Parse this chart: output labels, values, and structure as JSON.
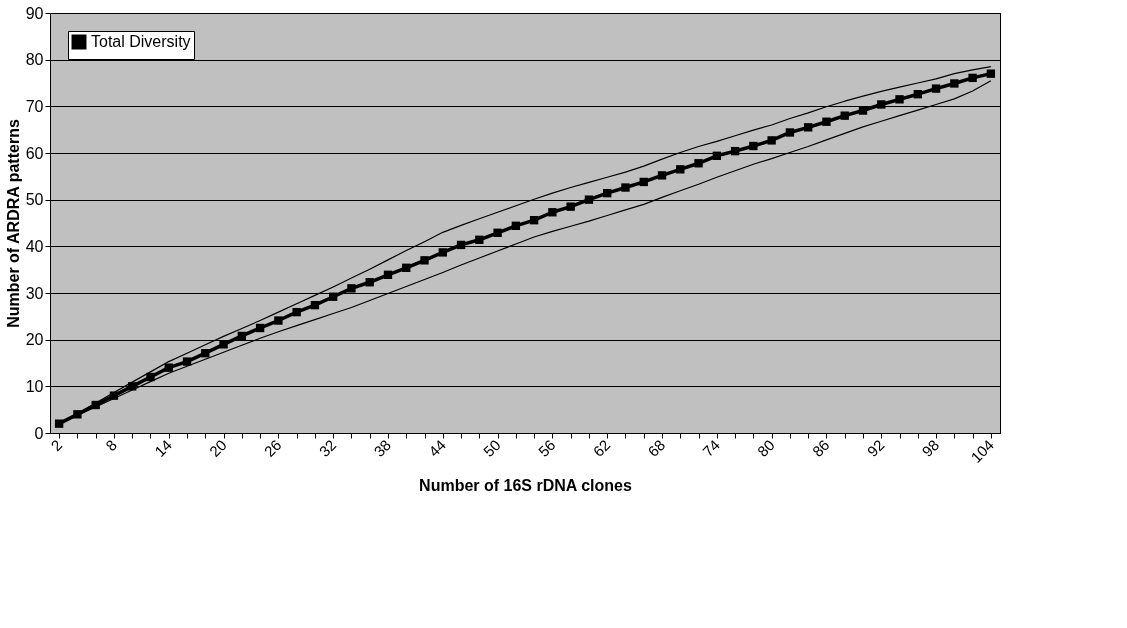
{
  "chart_data": {
    "type": "line",
    "xlabel": "Number of 16S rDNA clones",
    "ylabel": "Number of ARDRA patterns",
    "categories": [
      "2",
      null,
      null,
      "8",
      null,
      null,
      "14",
      null,
      null,
      "20",
      null,
      null,
      "26",
      null,
      null,
      "32",
      null,
      null,
      "38",
      null,
      null,
      "44",
      null,
      null,
      "50",
      null,
      null,
      "56",
      null,
      null,
      "62",
      null,
      null,
      "68",
      null,
      null,
      "74",
      null,
      null,
      "80",
      null,
      null,
      "86",
      null,
      null,
      "92",
      null,
      null,
      "98",
      null,
      null,
      "104"
    ],
    "series": [
      {
        "name": "Total Diversity",
        "color": "#000000",
        "marker": "square",
        "values": [
          2,
          4,
          6,
          8,
          10,
          12,
          14,
          15.3,
          17.1,
          19,
          20.8,
          22.5,
          24.1,
          25.9,
          27.4,
          29.2,
          31,
          32.3,
          33.9,
          35.4,
          37,
          38.7,
          40.3,
          41.4,
          42.9,
          44.4,
          45.6,
          47.3,
          48.5,
          50,
          51.4,
          52.6,
          53.8,
          55.2,
          56.5,
          57.8,
          59.4,
          60.4,
          61.5,
          62.7,
          64.4,
          65.5,
          66.7,
          68,
          69.1,
          70.4,
          71.5,
          72.6,
          73.8,
          74.9,
          76.1,
          77
        ]
      },
      {
        "color": "#000000",
        "marker": "none",
        "values": [
          2,
          4.2,
          6.4,
          8.7,
          10.9,
          13.1,
          15.3,
          17.1,
          18.9,
          20.7,
          22.4,
          24.1,
          25.9,
          27.7,
          29.5,
          31.3,
          33.2,
          35.1,
          37.1,
          39.1,
          41,
          43,
          44.5,
          45.9,
          47.3,
          48.7,
          50.1,
          51.4,
          52.6,
          53.7,
          54.8,
          55.9,
          57.2,
          58.7,
          60.1,
          61.4,
          62.5,
          63.7,
          64.9,
          66,
          67.4,
          68.6,
          69.9,
          71.1,
          72.2,
          73.2,
          74.1,
          75,
          75.9,
          77,
          77.8,
          78.5
        ]
      },
      {
        "color": "#000000",
        "marker": "none",
        "values": [
          2,
          3.8,
          5.6,
          7.4,
          9.2,
          11,
          12.8,
          14.3,
          15.8,
          17.3,
          18.8,
          20.3,
          21.7,
          23,
          24.3,
          25.6,
          26.9,
          28.4,
          29.9,
          31.4,
          32.9,
          34.4,
          36,
          37.5,
          39,
          40.5,
          42,
          43.2,
          44.3,
          45.4,
          46.6,
          47.8,
          49,
          50.5,
          51.9,
          53.3,
          54.8,
          56.2,
          57.6,
          58.8,
          60.1,
          61.4,
          62.8,
          64.2,
          65.6,
          66.8,
          68,
          69.2,
          70.4,
          71.6,
          73.3,
          75.5
        ]
      }
    ],
    "ylim": [
      0,
      90
    ],
    "yticks": [
      0,
      10,
      20,
      30,
      40,
      50,
      60,
      70,
      80,
      90
    ],
    "grid": "y",
    "legend": "top left",
    "line_style": "solid"
  }
}
